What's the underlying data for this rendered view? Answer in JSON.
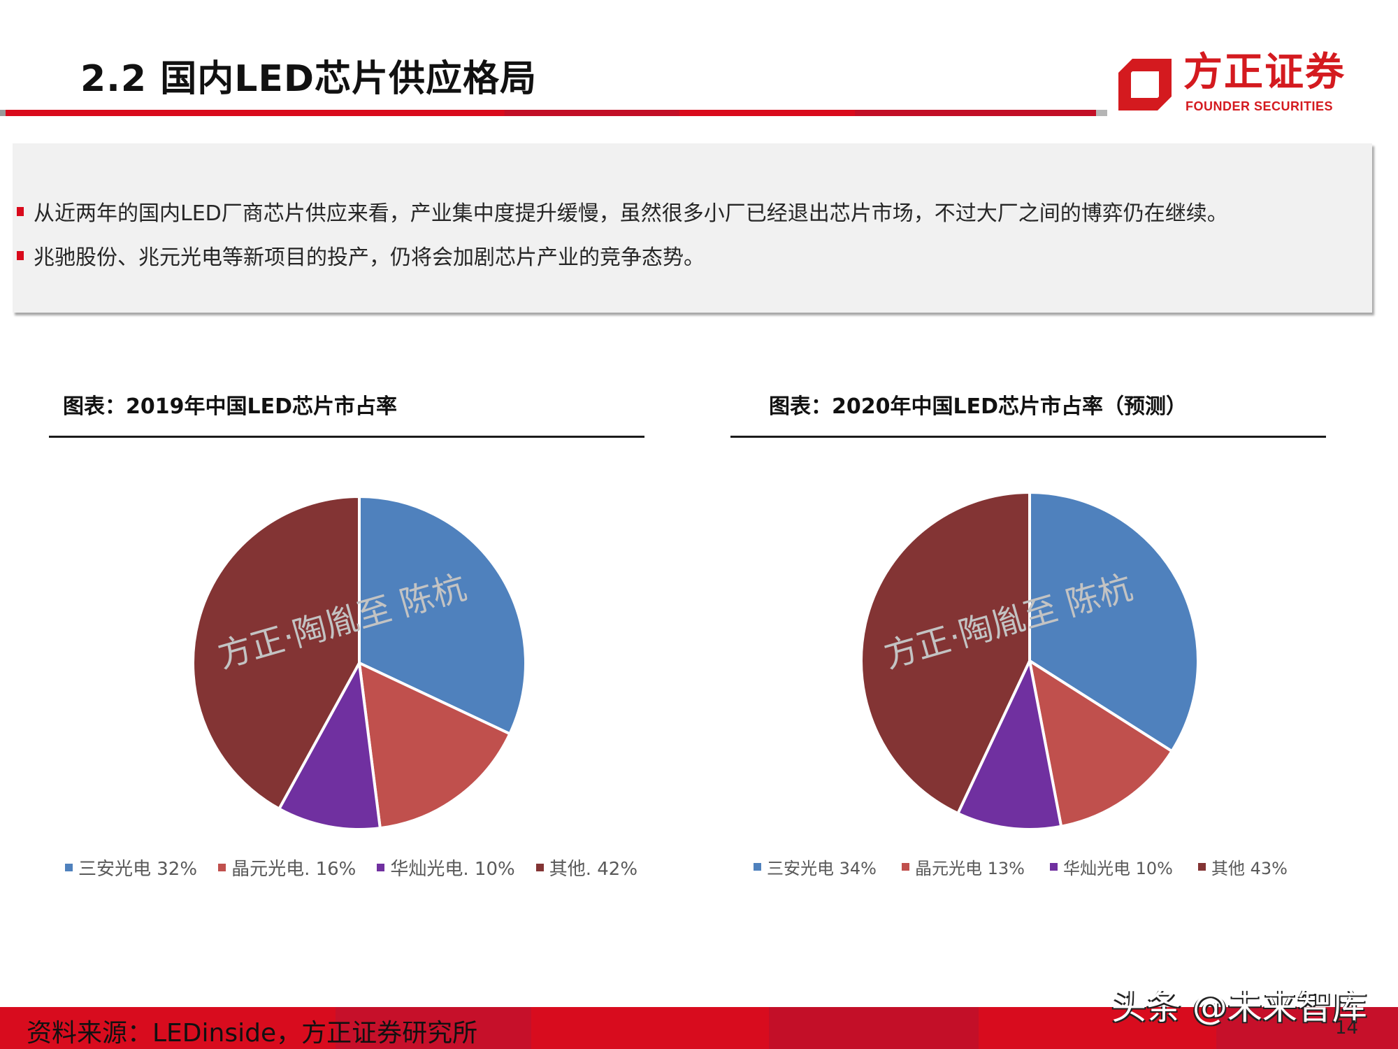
{
  "header": {
    "title": "2.2 国内LED芯片供应格局",
    "logo": {
      "cn": "方正证券",
      "en": "FOUNDER SECURITIES",
      "color": "#d41a1f"
    },
    "rule_color": "#d90a1c"
  },
  "summary": {
    "bullets": [
      "从近两年的国内LED厂商芯片供应来看，产业集中度提升缓慢，虽然很多小厂已经退出芯片市场，不过大厂之间的博弈仍在继续。",
      "兆驰股份、兆元光电等新项目的投产，仍将会加剧芯片产业的竞争态势。"
    ],
    "bullet_color": "#d90a1c"
  },
  "charts": {
    "left": {
      "title": "图表：2019年中国LED芯片市占率"
    },
    "right": {
      "title": "图表：2020年中国LED芯片市占率（预测）"
    }
  },
  "legend_left": [
    {
      "label": "三安光电  32%",
      "color": "#4f81bd"
    },
    {
      "label": "晶元光电. 16%",
      "color": "#c0504d"
    },
    {
      "label": "华灿光电. 10%",
      "color": "#7030a0"
    },
    {
      "label": "其他. 42%",
      "color": "#833434"
    }
  ],
  "legend_right": [
    {
      "label": "三安光电  34%",
      "color": "#4f81bd"
    },
    {
      "label": "晶元光电  13%",
      "color": "#c0504d"
    },
    {
      "label": "华灿光电 10%",
      "color": "#7030a0"
    },
    {
      "label": "其他 43%",
      "color": "#833434"
    }
  ],
  "watermark": "方正·陶胤至 陈杭",
  "footer": {
    "source": "资料来源：LEDinside，方正证券研究所",
    "toutiao": "头条 @未来智库",
    "page": "14"
  },
  "chart_data": [
    {
      "type": "pie",
      "title": "图表：2019年中国LED芯片市占率",
      "categories": [
        "三安光电",
        "晶元光电",
        "华灿光电",
        "其他"
      ],
      "values": [
        32,
        16,
        10,
        42
      ],
      "unit": "%",
      "colors": [
        "#4f81bd",
        "#c0504d",
        "#7030a0",
        "#833434"
      ],
      "legend_position": "bottom"
    },
    {
      "type": "pie",
      "title": "图表：2020年中国LED芯片市占率（预测）",
      "categories": [
        "三安光电",
        "晶元光电",
        "华灿光电",
        "其他"
      ],
      "values": [
        34,
        13,
        10,
        43
      ],
      "unit": "%",
      "colors": [
        "#4f81bd",
        "#c0504d",
        "#7030a0",
        "#833434"
      ],
      "legend_position": "bottom"
    }
  ]
}
